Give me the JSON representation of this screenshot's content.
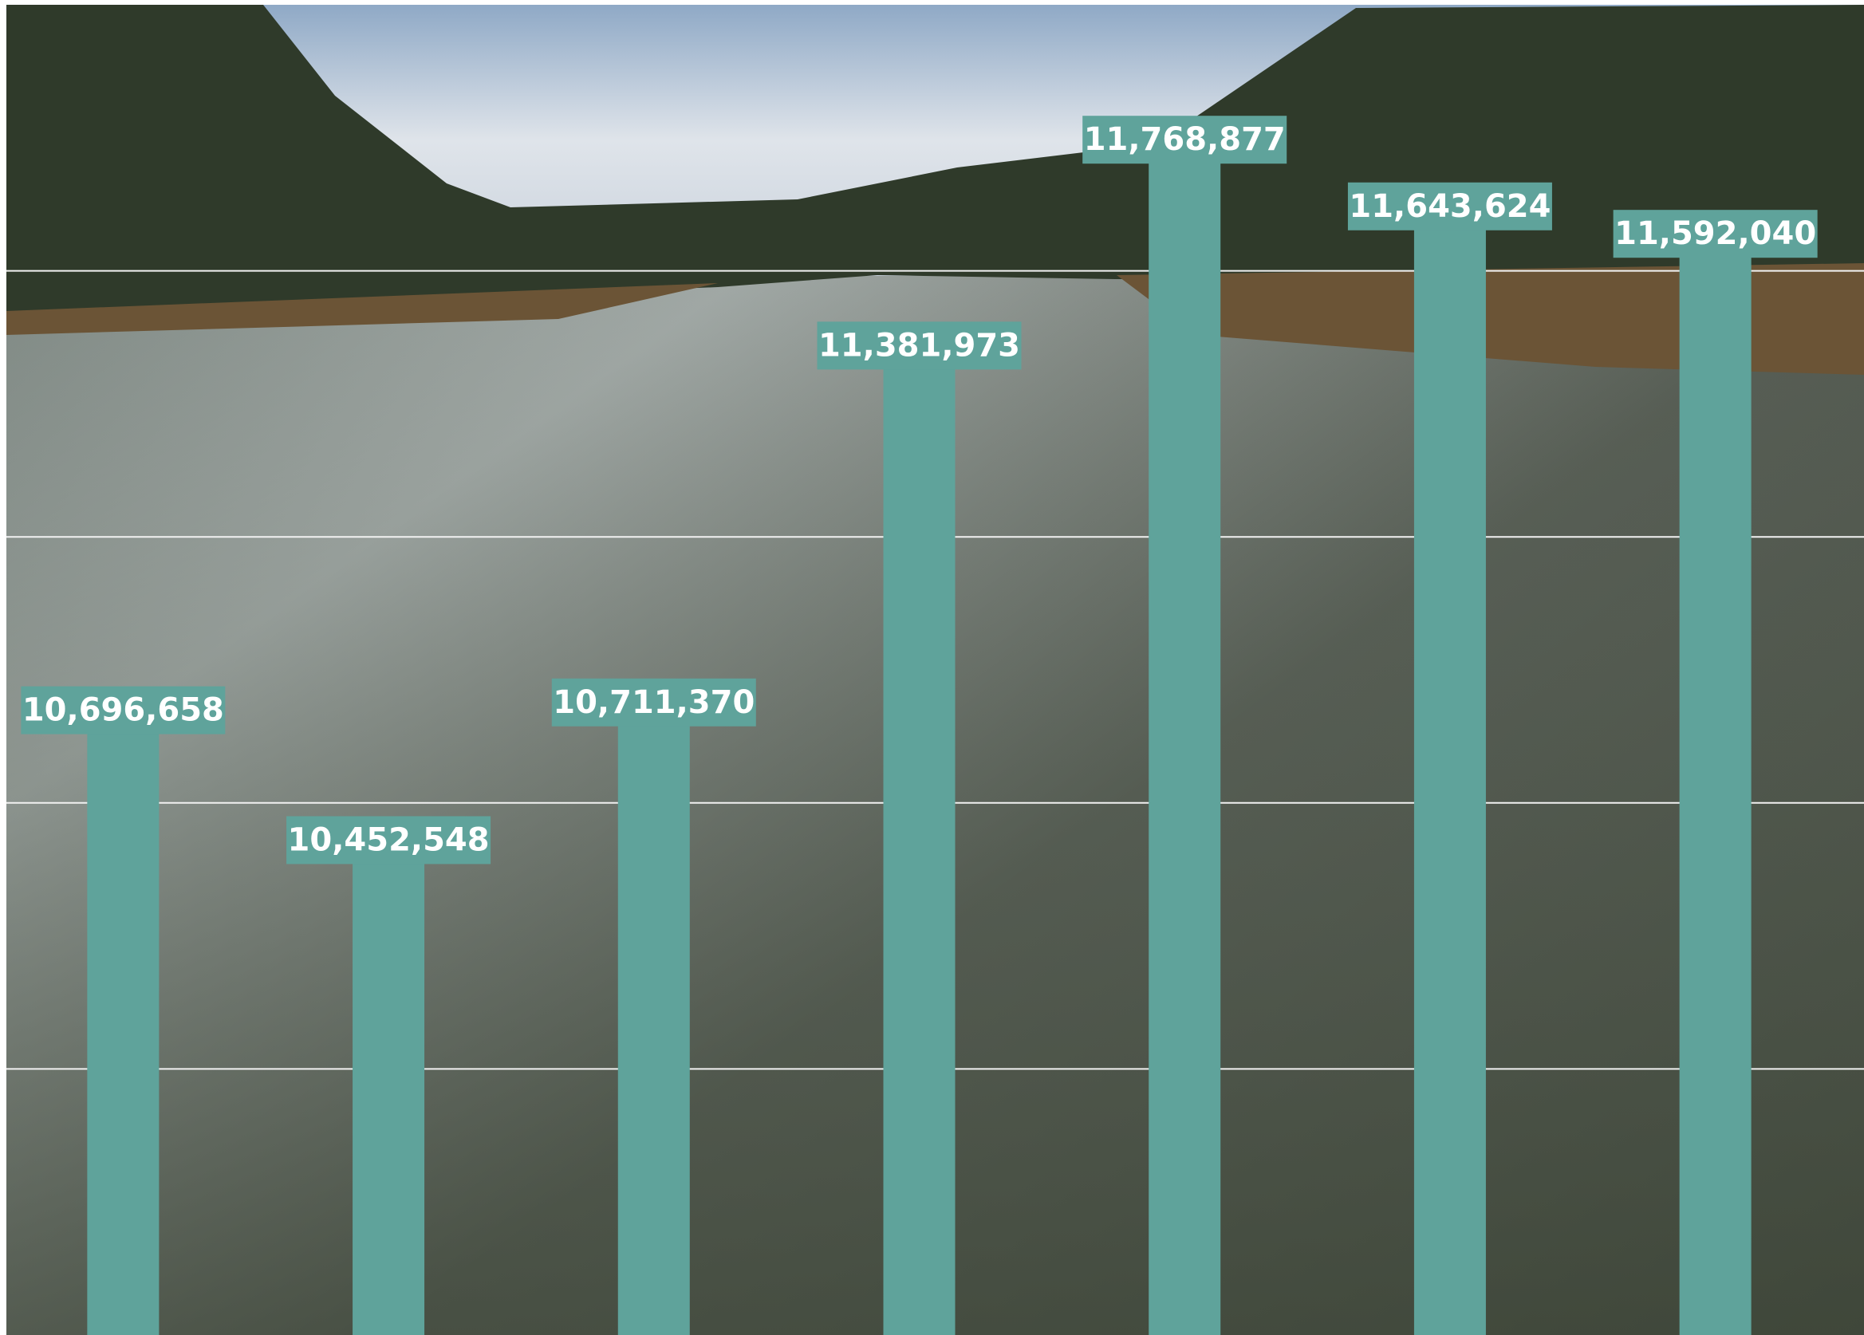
{
  "chart_data": {
    "type": "bar",
    "categories": [
      null,
      null,
      null,
      null,
      null,
      null,
      null
    ],
    "values": [
      10696658,
      10452548,
      10711370,
      11381973,
      11768877,
      11643624,
      11592040
    ],
    "value_labels": [
      "10,696,658",
      "10,452,548",
      "10,711,370",
      "11,381,973",
      "11,768,877",
      "11,643,624",
      "11,592,040"
    ],
    "color": "#5fa39b",
    "ylim": [
      9500000,
      12000000
    ],
    "yticks": [
      10000000,
      10500000,
      11000000,
      11500000
    ],
    "grid": true
  }
}
